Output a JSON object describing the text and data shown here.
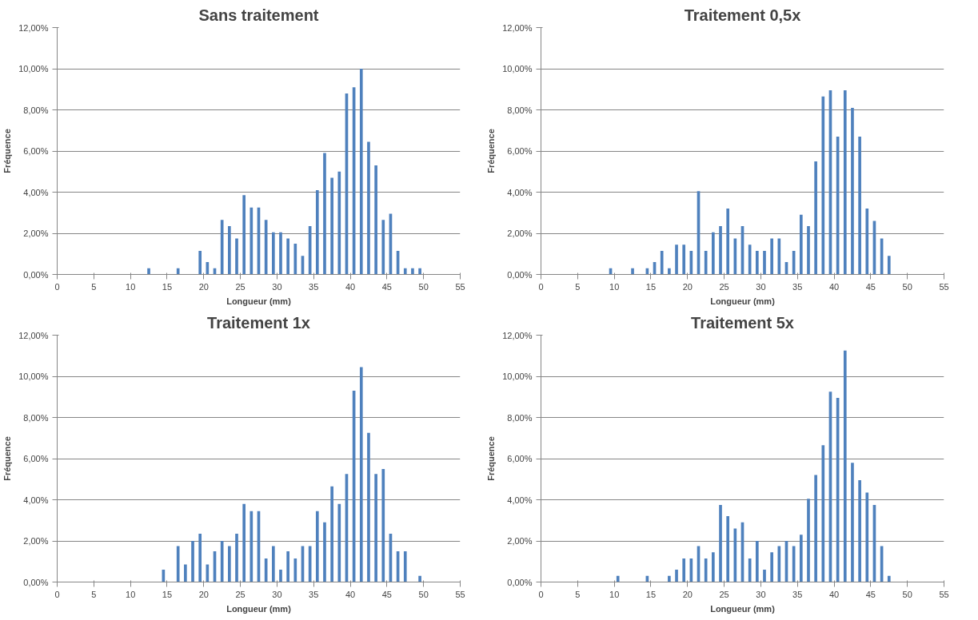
{
  "chart_data": [
    {
      "type": "bar",
      "title": "Sans traitement",
      "xlabel": "Longueur (mm)",
      "ylabel": "Fréquence",
      "color": "#4f81bd",
      "grid": "y",
      "x": [
        12.5,
        16.5,
        19.5,
        20.5,
        21.5,
        22.5,
        23.5,
        24.5,
        25.5,
        26.5,
        27.5,
        28.5,
        29.5,
        30.5,
        31.5,
        32.5,
        33.5,
        34.5,
        35.5,
        36.5,
        37.5,
        38.5,
        39.5,
        40.5,
        41.5,
        42.5,
        43.5,
        44.5,
        45.5,
        46.5,
        47.5,
        48.5,
        49.5
      ],
      "values": [
        0.3,
        0.3,
        1.15,
        0.6,
        0.3,
        2.65,
        2.35,
        1.75,
        3.85,
        3.25,
        3.25,
        2.65,
        2.05,
        2.05,
        1.75,
        1.5,
        0.9,
        2.35,
        4.1,
        5.9,
        4.7,
        5.0,
        8.8,
        9.1,
        10.0,
        6.45,
        5.3,
        2.65,
        2.95,
        1.15,
        0.3,
        0.3,
        0.3
      ],
      "xlim": [
        0,
        55
      ],
      "xticks": [
        0,
        5,
        10,
        15,
        20,
        25,
        30,
        35,
        40,
        45,
        50,
        55
      ],
      "ylim": [
        0,
        12
      ],
      "yticks": [
        {
          "value": 0,
          "label": "0,00%"
        },
        {
          "value": 2,
          "label": "2,00%"
        },
        {
          "value": 4,
          "label": "4,00%"
        },
        {
          "value": 6,
          "label": "6,00%"
        },
        {
          "value": 8,
          "label": "8,00%"
        },
        {
          "value": 10,
          "label": "10,00%"
        },
        {
          "value": 12,
          "label": "12,00%"
        }
      ]
    },
    {
      "type": "bar",
      "title": "Traitement 0,5x",
      "xlabel": "Longueur (mm)",
      "ylabel": "Fréquence",
      "color": "#4f81bd",
      "grid": "y",
      "x": [
        9.5,
        12.5,
        14.5,
        15.5,
        16.5,
        17.5,
        18.5,
        19.5,
        20.5,
        21.5,
        22.5,
        23.5,
        24.5,
        25.5,
        26.5,
        27.5,
        28.5,
        29.5,
        30.5,
        31.5,
        32.5,
        33.5,
        34.5,
        35.5,
        36.5,
        37.5,
        38.5,
        39.5,
        40.5,
        41.5,
        42.5,
        43.5,
        44.5,
        45.5,
        46.5,
        47.5
      ],
      "values": [
        0.3,
        0.3,
        0.3,
        0.6,
        1.15,
        0.3,
        1.45,
        1.45,
        1.15,
        4.05,
        1.15,
        2.05,
        2.35,
        3.2,
        1.75,
        2.35,
        1.45,
        1.15,
        1.15,
        1.75,
        1.75,
        0.6,
        1.15,
        2.9,
        2.35,
        5.5,
        8.65,
        8.95,
        6.7,
        8.95,
        8.1,
        6.7,
        3.2,
        2.6,
        1.75,
        0.9
      ],
      "xlim": [
        0,
        55
      ],
      "xticks": [
        0,
        5,
        10,
        15,
        20,
        25,
        30,
        35,
        40,
        45,
        50,
        55
      ],
      "ylim": [
        0,
        12
      ],
      "yticks": [
        {
          "value": 0,
          "label": "0,00%"
        },
        {
          "value": 2,
          "label": "2,00%"
        },
        {
          "value": 4,
          "label": "4,00%"
        },
        {
          "value": 6,
          "label": "6,00%"
        },
        {
          "value": 8,
          "label": "8,00%"
        },
        {
          "value": 10,
          "label": "10,00%"
        },
        {
          "value": 12,
          "label": "12,00%"
        }
      ]
    },
    {
      "type": "bar",
      "title": "Traitement 1x",
      "xlabel": "Longueur (mm)",
      "ylabel": "Fréquence",
      "color": "#4f81bd",
      "grid": "y",
      "x": [
        14.5,
        16.5,
        17.5,
        18.5,
        19.5,
        20.5,
        21.5,
        22.5,
        23.5,
        24.5,
        25.5,
        26.5,
        27.5,
        28.5,
        29.5,
        30.5,
        31.5,
        32.5,
        33.5,
        34.5,
        35.5,
        36.5,
        37.5,
        38.5,
        39.5,
        40.5,
        41.5,
        42.5,
        43.5,
        44.5,
        45.5,
        46.5,
        47.5,
        49.5
      ],
      "values": [
        0.6,
        1.75,
        0.85,
        2.0,
        2.35,
        0.85,
        1.5,
        2.0,
        1.75,
        2.35,
        3.8,
        3.45,
        3.45,
        1.15,
        1.75,
        0.6,
        1.5,
        1.15,
        1.75,
        1.75,
        3.45,
        2.9,
        4.65,
        3.8,
        5.25,
        9.3,
        10.45,
        7.25,
        5.25,
        5.5,
        2.35,
        1.5,
        1.5,
        0.3
      ],
      "xlim": [
        0,
        55
      ],
      "xticks": [
        0,
        5,
        10,
        15,
        20,
        25,
        30,
        35,
        40,
        45,
        50,
        55
      ],
      "ylim": [
        0,
        12
      ],
      "yticks": [
        {
          "value": 0,
          "label": "0,00%"
        },
        {
          "value": 2,
          "label": "2,00%"
        },
        {
          "value": 4,
          "label": "4,00%"
        },
        {
          "value": 6,
          "label": "6,00%"
        },
        {
          "value": 8,
          "label": "8,00%"
        },
        {
          "value": 10,
          "label": "10,00%"
        },
        {
          "value": 12,
          "label": "12,00%"
        }
      ]
    },
    {
      "type": "bar",
      "title": "Traitement 5x",
      "xlabel": "Longueur (mm)",
      "ylabel": "Fréquence",
      "color": "#4f81bd",
      "grid": "y",
      "x": [
        10.5,
        14.5,
        17.5,
        18.5,
        19.5,
        20.5,
        21.5,
        22.5,
        23.5,
        24.5,
        25.5,
        26.5,
        27.5,
        28.5,
        29.5,
        30.5,
        31.5,
        32.5,
        33.5,
        34.5,
        35.5,
        36.5,
        37.5,
        38.5,
        39.5,
        40.5,
        41.5,
        42.5,
        43.5,
        44.5,
        45.5,
        46.5,
        47.5
      ],
      "values": [
        0.3,
        0.3,
        0.3,
        0.6,
        1.15,
        1.15,
        1.75,
        1.15,
        1.45,
        3.75,
        3.2,
        2.6,
        2.9,
        1.15,
        2.0,
        0.6,
        1.45,
        1.75,
        2.0,
        1.75,
        2.3,
        4.05,
        5.2,
        6.65,
        9.25,
        8.95,
        11.25,
        5.8,
        4.95,
        4.35,
        3.75,
        1.75,
        0.3
      ],
      "xlim": [
        0,
        55
      ],
      "xticks": [
        0,
        5,
        10,
        15,
        20,
        25,
        30,
        35,
        40,
        45,
        50,
        55
      ],
      "ylim": [
        0,
        12
      ],
      "yticks": [
        {
          "value": 0,
          "label": "0,00%"
        },
        {
          "value": 2,
          "label": "2,00%"
        },
        {
          "value": 4,
          "label": "4,00%"
        },
        {
          "value": 6,
          "label": "6,00%"
        },
        {
          "value": 8,
          "label": "8,00%"
        },
        {
          "value": 10,
          "label": "10,00%"
        },
        {
          "value": 12,
          "label": "12,00%"
        }
      ]
    }
  ]
}
